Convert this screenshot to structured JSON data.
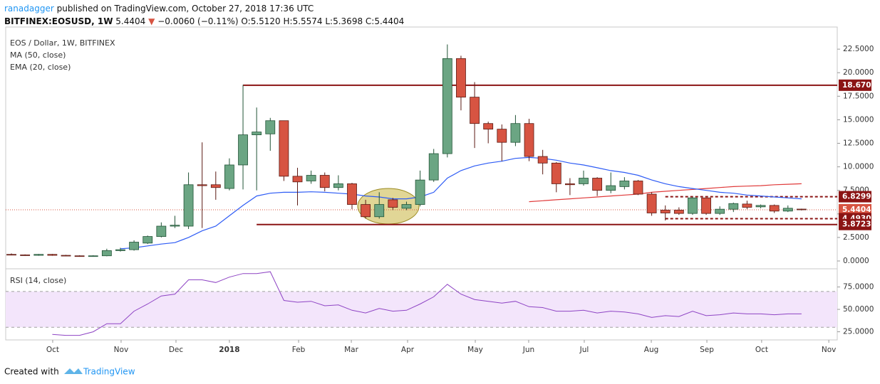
{
  "header": {
    "author": "ranadagger",
    "published": "published on TradingView.com, October 27, 2018 17:36 UTC",
    "symbol": "BITFINEX:EOSUSD, 1W",
    "last": "5.4404",
    "change": "−0.0060 (−0.11%)",
    "ohlc": "O:5.5120 H:5.5574 L:5.3698 C:5.4404"
  },
  "footer": {
    "created": "Created with",
    "brand": "TradingView"
  },
  "chart_data": {
    "type": "candlestick",
    "title": "EOS / Dollar, 1W, BITFINEX",
    "categories": [
      null,
      null,
      null,
      null,
      null,
      null,
      null,
      null,
      null,
      null,
      null,
      null,
      null,
      null,
      null,
      null,
      null,
      null,
      null,
      null,
      null,
      null,
      null,
      null,
      null,
      null,
      null,
      null,
      null,
      null,
      null,
      null,
      null,
      null,
      null,
      null,
      null,
      null,
      null,
      null,
      null,
      null,
      null,
      null,
      null,
      null,
      null,
      null,
      null,
      null,
      null,
      null,
      null,
      null,
      null,
      null,
      null,
      null,
      null
    ],
    "open": [
      0.7,
      0.65,
      0.6,
      0.7,
      0.6,
      0.55,
      0.5,
      0.55,
      1.1,
      1.2,
      1.9,
      2.6,
      3.7,
      3.7,
      8.1,
      8.1,
      7.7,
      10.2,
      13.4,
      13.5,
      14.9,
      9.0,
      8.5,
      9.1,
      7.8,
      8.2,
      6.0,
      4.7,
      6.5,
      5.6,
      6.0,
      8.6,
      11.4,
      21.5,
      17.4,
      14.6,
      14.0,
      12.6,
      14.6,
      11.1,
      10.4,
      8.2,
      8.2,
      8.8,
      7.5,
      7.9,
      8.5,
      7.1,
      5.4,
      5.4,
      5.05,
      6.7,
      5.05,
      5.5,
      6.05,
      5.75,
      5.9,
      5.3,
      5.512
    ],
    "high": [
      0.8,
      0.7,
      0.75,
      0.75,
      0.65,
      0.6,
      0.6,
      1.3,
      1.4,
      2.2,
      2.7,
      4.1,
      4.8,
      9.4,
      12.6,
      9.5,
      10.9,
      18.7,
      16.3,
      15.2,
      14.9,
      9.9,
      9.6,
      9.4,
      9.1,
      8.3,
      6.5,
      7.3,
      6.7,
      6.3,
      9.6,
      11.9,
      23.0,
      21.8,
      19.0,
      14.8,
      14.5,
      15.5,
      15.1,
      11.8,
      10.5,
      8.8,
      9.6,
      8.9,
      9.4,
      8.9,
      8.6,
      7.3,
      5.9,
      5.7,
      6.8,
      6.7,
      5.8,
      6.2,
      6.4,
      6.0,
      6.0,
      5.9,
      5.5574
    ],
    "low": [
      0.6,
      0.55,
      0.55,
      0.55,
      0.5,
      0.45,
      0.45,
      0.5,
      1.0,
      1.1,
      1.8,
      2.5,
      3.5,
      3.4,
      3.5,
      6.5,
      7.5,
      7.6,
      7.5,
      11.7,
      8.5,
      5.9,
      8.2,
      7.4,
      7.5,
      5.5,
      4.5,
      4.5,
      5.4,
      5.4,
      5.8,
      8.4,
      11.0,
      16.0,
      12.0,
      12.5,
      10.6,
      12.2,
      10.6,
      9.2,
      7.3,
      7.0,
      8.0,
      6.9,
      7.2,
      7.6,
      7.0,
      4.8,
      4.3,
      4.9,
      4.9,
      4.9,
      4.9,
      5.2,
      5.5,
      5.6,
      5.1,
      5.2,
      5.3698
    ],
    "close": [
      0.65,
      0.6,
      0.7,
      0.6,
      0.55,
      0.5,
      0.55,
      1.1,
      1.2,
      2.0,
      2.6,
      3.7,
      3.8,
      8.1,
      8.0,
      7.8,
      10.2,
      13.4,
      13.7,
      14.9,
      9.0,
      8.4,
      9.1,
      7.8,
      8.2,
      6.0,
      4.7,
      6.0,
      5.7,
      6.0,
      8.6,
      11.4,
      21.5,
      17.4,
      14.6,
      14.0,
      12.6,
      14.6,
      11.1,
      10.4,
      8.2,
      8.1,
      8.8,
      7.5,
      8.0,
      8.5,
      7.1,
      5.1,
      5.1,
      5.05,
      6.7,
      5.05,
      5.5,
      6.1,
      5.7,
      5.9,
      5.3,
      5.6,
      5.4404
    ],
    "up_color": "#6ba583",
    "down_color": "#d75442",
    "series": [
      {
        "name": "MA (50, close)",
        "color": "#e03a3a",
        "values": [
          null,
          null,
          null,
          null,
          null,
          null,
          null,
          null,
          null,
          null,
          null,
          null,
          null,
          null,
          null,
          null,
          null,
          null,
          null,
          null,
          null,
          null,
          null,
          null,
          null,
          null,
          null,
          null,
          null,
          null,
          null,
          null,
          null,
          null,
          null,
          null,
          null,
          null,
          6.3,
          6.4,
          6.5,
          6.6,
          6.7,
          6.8,
          6.9,
          7.0,
          7.1,
          7.3,
          7.4,
          7.5,
          7.6,
          7.7,
          7.8,
          7.9,
          7.95,
          8.0,
          8.1,
          8.15,
          8.2
        ]
      },
      {
        "name": "EMA (20, close)",
        "color": "#2e5cf5",
        "values": [
          null,
          null,
          null,
          null,
          null,
          null,
          null,
          null,
          1.3,
          1.4,
          1.6,
          1.8,
          1.95,
          2.5,
          3.2,
          3.7,
          4.8,
          5.9,
          6.9,
          7.2,
          7.3,
          7.3,
          7.35,
          7.3,
          7.2,
          7.1,
          6.9,
          6.8,
          6.6,
          6.6,
          6.8,
          7.3,
          8.8,
          9.6,
          10.1,
          10.4,
          10.6,
          10.9,
          11.0,
          10.9,
          10.7,
          10.4,
          10.2,
          9.9,
          9.6,
          9.4,
          9.1,
          8.6,
          8.2,
          7.9,
          7.7,
          7.5,
          7.3,
          7.2,
          7.0,
          6.9,
          6.8,
          6.7,
          6.6
        ]
      }
    ],
    "xlim": [
      -0.42,
      60.62
    ],
    "xticks": [
      {
        "value": 3.03,
        "label": "Oct"
      },
      {
        "value": 8.05,
        "label": "Nov"
      },
      {
        "value": 12.08,
        "label": "Dec"
      },
      {
        "value": 16.0,
        "label": "2018"
      },
      {
        "value": 21.08,
        "label": "Feb"
      },
      {
        "value": 24.95,
        "label": "Mar"
      },
      {
        "value": 29.08,
        "label": "Apr"
      },
      {
        "value": 34.05,
        "label": "May"
      },
      {
        "value": 37.97,
        "label": "Jun"
      },
      {
        "value": 42.05,
        "label": "Jul"
      },
      {
        "value": 46.97,
        "label": "Aug"
      },
      {
        "value": 51.05,
        "label": "Sep"
      },
      {
        "value": 55.07,
        "label": "Oct"
      },
      {
        "value": 60.0,
        "label": "Nov"
      }
    ],
    "ylim": [
      -0.68,
      24.85
    ],
    "yticks": [
      {
        "value": 0,
        "label": "0.0000"
      },
      {
        "value": 2.5,
        "label": "2.5000"
      },
      {
        "value": 5,
        "label": "5.0000"
      },
      {
        "value": 7.5,
        "label": "7.5000"
      },
      {
        "value": 10,
        "label": "10.0000"
      },
      {
        "value": 12.5,
        "label": "12.5000"
      },
      {
        "value": 15,
        "label": "15.0000"
      },
      {
        "value": 17.5,
        "label": "17.5000"
      },
      {
        "value": 20,
        "label": "20.0000"
      },
      {
        "value": 22.5,
        "label": "22.5000"
      }
    ],
    "levels": [
      {
        "value": 18.67,
        "label": "18.6700",
        "color": "#8b1414",
        "style": "solid",
        "from": 17
      },
      {
        "value": 6.8299,
        "label": "6.8299",
        "color": "#8b1414",
        "style": "dashed",
        "from": 48
      },
      {
        "value": 5.4404,
        "label": "5.4404",
        "color": "#d75442",
        "style": "dotted",
        "from": -0.42
      },
      {
        "value": 4.493,
        "label": "4.4930",
        "color": "#8b1414",
        "style": "dashed",
        "from": 48
      },
      {
        "value": 3.8723,
        "label": "3.8723",
        "color": "#8b1414",
        "style": "solid",
        "from": 18
      }
    ],
    "rsi": {
      "name": "RSI (14, close)",
      "color": "#8e44c4",
      "values": [
        null,
        null,
        null,
        22,
        21,
        21,
        25,
        34,
        34,
        48,
        56,
        65,
        67,
        83,
        83,
        80,
        86,
        90,
        90,
        92,
        60,
        58,
        59,
        54,
        55,
        49,
        46,
        51,
        48,
        49,
        56,
        64,
        78,
        67,
        61,
        59,
        57,
        59,
        53,
        52,
        48,
        48,
        49,
        46,
        48,
        47,
        45,
        41,
        43,
        42,
        48,
        43,
        44,
        46,
        45,
        45,
        44,
        45,
        45
      ],
      "ylim": [
        17.5,
        93.7
      ],
      "yticks": [
        {
          "value": 25,
          "label": "25.0000"
        },
        {
          "value": 50,
          "label": "50.0000"
        },
        {
          "value": 75,
          "label": "75.0000"
        }
      ],
      "band": [
        30,
        70
      ],
      "band_color": "#f3e5fb"
    }
  }
}
